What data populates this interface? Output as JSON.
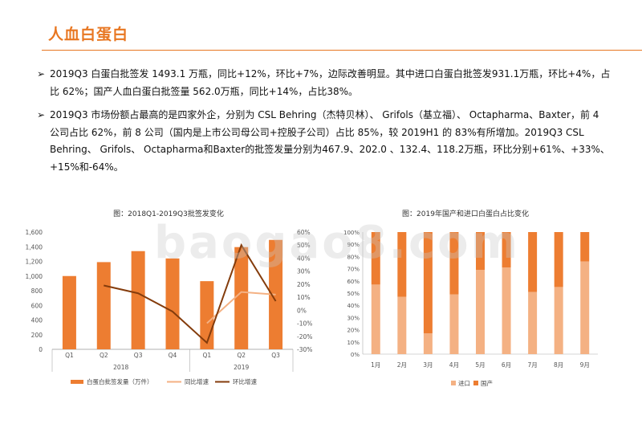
{
  "page": {
    "title": "人血白蛋白",
    "bullets": [
      "2019Q3 白蛋白批签发 1493.1 万瓶，同比+12%，环比+7%，边际改善明显。其中进口白蛋白批签发931.1万瓶，环比+4%，占比 62%；国产人血白蛋白批签量 562.0万瓶，同比+14%，占比38%。",
      "2019Q3 市场份额占最高的是四家外企，分别为 CSL Behring（杰特贝林）、 Grifols（基立福）、 Octapharma、Baxter，前 4 公司占比 62%，前 8 公司（国内是上市公司母公司+控股子公司）占比 85%，较 2019H1 的 83%有所增加。2019Q3 CSL Behring、 Grifols、 Octapharma和Baxter的批签发量分别为467.9、202.0 、132.4、118.2万瓶，环比分别+61%、+33%、+15%和-64%。"
    ],
    "bullet_marker": "➢",
    "watermark": "baogao8.com"
  },
  "chart_data": [
    {
      "type": "bar",
      "title": "图：2018Q1-2019Q3批签发变化",
      "categories": [
        "Q1",
        "Q2",
        "Q3",
        "Q4",
        "Q1",
        "Q2",
        "Q3"
      ],
      "groups": [
        {
          "label": "2018",
          "span": 4
        },
        {
          "label": "2019",
          "span": 3
        }
      ],
      "y_left": {
        "ticks": [
          "0",
          "200",
          "400",
          "600",
          "800",
          "1,000",
          "1,200",
          "1,400",
          "1,600"
        ],
        "min": 0,
        "max": 1600
      },
      "y_right": {
        "ticks": [
          "-30%",
          "-20%",
          "-10%",
          "0%",
          "10%",
          "20%",
          "30%",
          "40%",
          "50%",
          "60%"
        ],
        "min": -30,
        "max": 60
      },
      "series": [
        {
          "name": "白蛋白批签发量（万件）",
          "kind": "bar",
          "axis": "left",
          "color": "#ed7d31",
          "values": [
            1000,
            1190,
            1340,
            1240,
            930,
            1395,
            1493
          ]
        },
        {
          "name": "同比增速",
          "kind": "line",
          "axis": "right",
          "color": "#f4b183",
          "values": [
            null,
            null,
            null,
            null,
            -10,
            14,
            12
          ]
        },
        {
          "name": "环比增速",
          "kind": "line",
          "axis": "right",
          "color": "#843c0c",
          "values": [
            null,
            19,
            13,
            -1,
            -25,
            50,
            7
          ]
        }
      ]
    },
    {
      "type": "bar",
      "stacked": true,
      "title": "图：2019年国产和进口白蛋白占比变化",
      "categories": [
        "1月",
        "2月",
        "3月",
        "4月",
        "5月",
        "6月",
        "7月",
        "8月",
        "9月"
      ],
      "y_ticks": [
        "0%",
        "10%",
        "20%",
        "30%",
        "40%",
        "50%",
        "60%",
        "70%",
        "80%",
        "90%",
        "100%"
      ],
      "series": [
        {
          "name": "进口",
          "color": "#f4b183",
          "values": [
            57,
            47,
            17,
            49,
            69,
            71,
            51,
            55,
            76
          ]
        },
        {
          "name": "国产",
          "color": "#ed7d31",
          "values": [
            43,
            53,
            83,
            51,
            31,
            29,
            49,
            45,
            24
          ]
        }
      ]
    }
  ]
}
